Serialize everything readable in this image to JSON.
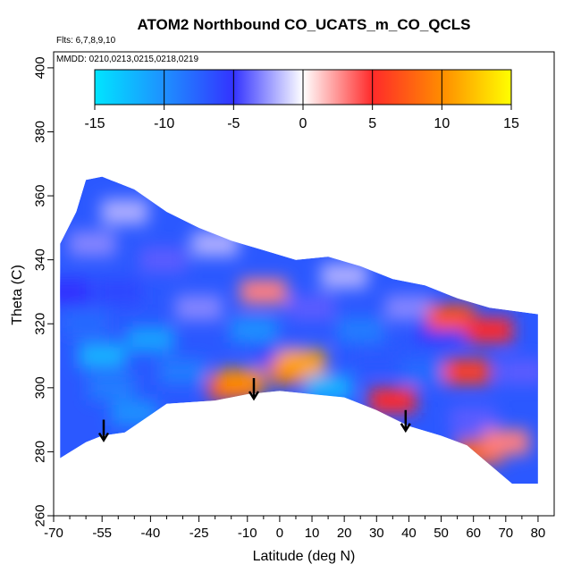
{
  "chart_data": {
    "type": "heatmap",
    "title": "ATOM2 Northbound CO_UCATS_m_CO_QCLS",
    "subtitle_lines": [
      "Flts: 6,7,8,9,10",
      "MMDD: 0210,0213,0215,0218,0219"
    ],
    "xlabel": "Latitude (deg N)",
    "ylabel": "Theta (C)",
    "xlim": [
      -70,
      85
    ],
    "ylim": [
      260,
      405
    ],
    "x_ticks": [
      -70,
      -55,
      -40,
      -25,
      -10,
      0,
      10,
      20,
      30,
      40,
      50,
      60,
      70,
      80
    ],
    "x_minor_ticks": [
      -65,
      -60,
      -50,
      -45,
      -35,
      -30,
      -20,
      -15,
      -5,
      5,
      15,
      25,
      35,
      45,
      55,
      65,
      75
    ],
    "y_ticks": [
      260,
      280,
      300,
      320,
      340,
      360,
      380,
      400
    ],
    "colorbar": {
      "range": [
        -15,
        15
      ],
      "ticks": [
        -15,
        -10,
        -5,
        0,
        5,
        10,
        15
      ],
      "stops": [
        {
          "v": -15,
          "color": "#00e5ff"
        },
        {
          "v": -10,
          "color": "#1e90ff"
        },
        {
          "v": -5,
          "color": "#3333ff"
        },
        {
          "v": 0,
          "color": "#ffffff"
        },
        {
          "v": 5,
          "color": "#ff2a2a"
        },
        {
          "v": 10,
          "color": "#ff8c00"
        },
        {
          "v": 15,
          "color": "#ffff00"
        }
      ]
    },
    "data_envelope": {
      "lower": [
        [
          -68,
          278
        ],
        [
          -60,
          283
        ],
        [
          -55,
          285
        ],
        [
          -48,
          286
        ],
        [
          -35,
          295
        ],
        [
          -20,
          296
        ],
        [
          -10,
          298
        ],
        [
          0,
          299
        ],
        [
          10,
          298
        ],
        [
          20,
          297
        ],
        [
          30,
          293
        ],
        [
          40,
          288
        ],
        [
          50,
          285
        ],
        [
          58,
          282
        ],
        [
          65,
          276
        ],
        [
          72,
          270
        ],
        [
          80,
          270
        ]
      ],
      "upper": [
        [
          -68,
          345
        ],
        [
          -63,
          355
        ],
        [
          -60,
          365
        ],
        [
          -55,
          366
        ],
        [
          -45,
          362
        ],
        [
          -35,
          355
        ],
        [
          -25,
          350
        ],
        [
          -15,
          346
        ],
        [
          -5,
          343
        ],
        [
          5,
          340
        ],
        [
          15,
          341
        ],
        [
          25,
          338
        ],
        [
          35,
          334
        ],
        [
          45,
          332
        ],
        [
          55,
          328
        ],
        [
          65,
          325
        ],
        [
          80,
          323
        ]
      ]
    },
    "cells": [
      {
        "x": -66,
        "y": 330,
        "v": -5
      },
      {
        "x": -60,
        "y": 320,
        "v": -8
      },
      {
        "x": -58,
        "y": 345,
        "v": -3
      },
      {
        "x": -55,
        "y": 310,
        "v": -12
      },
      {
        "x": -52,
        "y": 300,
        "v": -9
      },
      {
        "x": -50,
        "y": 330,
        "v": -6
      },
      {
        "x": -48,
        "y": 355,
        "v": -2
      },
      {
        "x": -45,
        "y": 292,
        "v": -10
      },
      {
        "x": -40,
        "y": 315,
        "v": -11
      },
      {
        "x": -36,
        "y": 340,
        "v": -4
      },
      {
        "x": -30,
        "y": 305,
        "v": -9
      },
      {
        "x": -25,
        "y": 325,
        "v": -3
      },
      {
        "x": -20,
        "y": 345,
        "v": -2
      },
      {
        "x": -15,
        "y": 300,
        "v": 6
      },
      {
        "x": -12,
        "y": 302,
        "v": 10
      },
      {
        "x": -8,
        "y": 318,
        "v": -10
      },
      {
        "x": -5,
        "y": 330,
        "v": 3
      },
      {
        "x": 0,
        "y": 310,
        "v": -6
      },
      {
        "x": 4,
        "y": 305,
        "v": 9
      },
      {
        "x": 7,
        "y": 308,
        "v": 11
      },
      {
        "x": 10,
        "y": 325,
        "v": -4
      },
      {
        "x": 15,
        "y": 300,
        "v": -12
      },
      {
        "x": 20,
        "y": 335,
        "v": -2
      },
      {
        "x": 25,
        "y": 318,
        "v": -9
      },
      {
        "x": 30,
        "y": 310,
        "v": -7
      },
      {
        "x": 35,
        "y": 296,
        "v": 5
      },
      {
        "x": 40,
        "y": 325,
        "v": -3
      },
      {
        "x": 45,
        "y": 305,
        "v": -8
      },
      {
        "x": 50,
        "y": 318,
        "v": -5
      },
      {
        "x": 53,
        "y": 322,
        "v": 7
      },
      {
        "x": 58,
        "y": 305,
        "v": 6
      },
      {
        "x": 60,
        "y": 290,
        "v": -4
      },
      {
        "x": 65,
        "y": 318,
        "v": 5
      },
      {
        "x": 62,
        "y": 280,
        "v": 8
      },
      {
        "x": 70,
        "y": 283,
        "v": 3
      },
      {
        "x": 75,
        "y": 305,
        "v": -4
      }
    ],
    "arrows_latitude": [
      -54.5,
      -8,
      39
    ]
  }
}
